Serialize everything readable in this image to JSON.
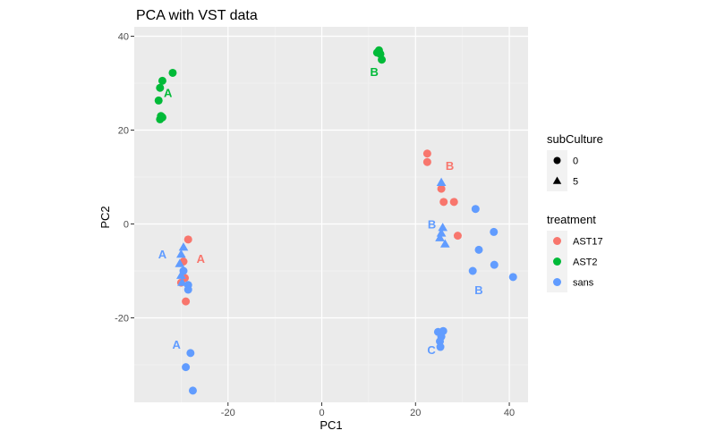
{
  "chart_data": {
    "type": "scatter",
    "title": "PCA with VST data",
    "xlabel": "PC1",
    "ylabel": "PC2",
    "xlim": [
      -40,
      44
    ],
    "ylim": [
      -38,
      42
    ],
    "x_ticks": [
      -20,
      0,
      20,
      40
    ],
    "y_ticks": [
      -20,
      0,
      20,
      40
    ],
    "grid": true,
    "legend_position": "right",
    "legends": [
      {
        "title": "subCulture",
        "kind": "shape",
        "items": [
          {
            "label": "0",
            "shape": "circle"
          },
          {
            "label": "5",
            "shape": "triangle"
          }
        ]
      },
      {
        "title": "treatment",
        "kind": "color",
        "items": [
          {
            "label": "AST17",
            "color": "#F8766D"
          },
          {
            "label": "AST2",
            "color": "#00BA38"
          },
          {
            "label": "sans",
            "color": "#619CFF"
          }
        ]
      }
    ],
    "series": [
      {
        "name": "AST2",
        "color": "#00BA38",
        "points": [
          {
            "x": -34.5,
            "y": 22.3,
            "shape": "circle"
          },
          {
            "x": -34.3,
            "y": 23.0,
            "shape": "circle"
          },
          {
            "x": -34.0,
            "y": 22.7,
            "shape": "circle"
          },
          {
            "x": -34.8,
            "y": 26.3,
            "shape": "circle"
          },
          {
            "x": -34.5,
            "y": 29.0,
            "shape": "circle"
          },
          {
            "x": -34.0,
            "y": 30.5,
            "shape": "circle"
          },
          {
            "x": -31.8,
            "y": 32.2,
            "shape": "circle"
          },
          {
            "x": 11.8,
            "y": 36.5,
            "shape": "circle"
          },
          {
            "x": 12.2,
            "y": 37.0,
            "shape": "circle"
          },
          {
            "x": 12.5,
            "y": 36.2,
            "shape": "circle"
          },
          {
            "x": 12.8,
            "y": 35.0,
            "shape": "circle"
          }
        ]
      },
      {
        "name": "AST17",
        "color": "#F8766D",
        "points": [
          {
            "x": -28.5,
            "y": -3.3,
            "shape": "circle"
          },
          {
            "x": -29.5,
            "y": -8.0,
            "shape": "circle"
          },
          {
            "x": -29.2,
            "y": -11.5,
            "shape": "circle"
          },
          {
            "x": -30.0,
            "y": -12.5,
            "shape": "circle"
          },
          {
            "x": -29.0,
            "y": -16.5,
            "shape": "circle"
          },
          {
            "x": 22.5,
            "y": 15.0,
            "shape": "circle"
          },
          {
            "x": 22.5,
            "y": 13.2,
            "shape": "circle"
          },
          {
            "x": 25.5,
            "y": 7.5,
            "shape": "circle"
          },
          {
            "x": 26.0,
            "y": 4.7,
            "shape": "circle"
          },
          {
            "x": 28.2,
            "y": 4.7,
            "shape": "circle"
          },
          {
            "x": 29.0,
            "y": -2.5,
            "shape": "circle"
          }
        ]
      },
      {
        "name": "sans",
        "color": "#619CFF",
        "points": [
          {
            "x": -29.5,
            "y": -5.0,
            "shape": "triangle"
          },
          {
            "x": -30.0,
            "y": -6.5,
            "shape": "triangle"
          },
          {
            "x": -30.3,
            "y": -8.5,
            "shape": "triangle"
          },
          {
            "x": -30.0,
            "y": -11.0,
            "shape": "triangle"
          },
          {
            "x": -29.8,
            "y": -12.5,
            "shape": "triangle"
          },
          {
            "x": -29.5,
            "y": -10.0,
            "shape": "circle"
          },
          {
            "x": -28.5,
            "y": -13.0,
            "shape": "circle"
          },
          {
            "x": -28.5,
            "y": -14.0,
            "shape": "circle"
          },
          {
            "x": -28.0,
            "y": -27.5,
            "shape": "circle"
          },
          {
            "x": -29.0,
            "y": -30.5,
            "shape": "circle"
          },
          {
            "x": -27.5,
            "y": -35.5,
            "shape": "circle"
          },
          {
            "x": 25.5,
            "y": 8.8,
            "shape": "triangle"
          },
          {
            "x": 25.8,
            "y": -0.8,
            "shape": "triangle"
          },
          {
            "x": 25.5,
            "y": -2.0,
            "shape": "triangle"
          },
          {
            "x": 25.2,
            "y": -3.0,
            "shape": "triangle"
          },
          {
            "x": 26.3,
            "y": -4.3,
            "shape": "triangle"
          },
          {
            "x": 32.8,
            "y": 3.2,
            "shape": "circle"
          },
          {
            "x": 36.7,
            "y": -1.7,
            "shape": "circle"
          },
          {
            "x": 33.5,
            "y": -5.5,
            "shape": "circle"
          },
          {
            "x": 36.8,
            "y": -8.7,
            "shape": "circle"
          },
          {
            "x": 32.2,
            "y": -10.0,
            "shape": "circle"
          },
          {
            "x": 40.8,
            "y": -11.3,
            "shape": "circle"
          },
          {
            "x": 24.8,
            "y": -23.0,
            "shape": "circle"
          },
          {
            "x": 25.9,
            "y": -22.8,
            "shape": "circle"
          },
          {
            "x": 25.5,
            "y": -24.0,
            "shape": "circle"
          },
          {
            "x": 25.2,
            "y": -25.0,
            "shape": "circle"
          },
          {
            "x": 25.3,
            "y": -26.2,
            "shape": "circle"
          }
        ]
      }
    ],
    "annotations": [
      {
        "text": "A",
        "x": -32.8,
        "y": 28.0,
        "color": "#00BA38"
      },
      {
        "text": "B",
        "x": 11.2,
        "y": 32.5,
        "color": "#00BA38"
      },
      {
        "text": "B",
        "x": 27.3,
        "y": 12.5,
        "color": "#F8766D"
      },
      {
        "text": "A",
        "x": -25.8,
        "y": -7.3,
        "color": "#F8766D"
      },
      {
        "text": "A",
        "x": -34.0,
        "y": -6.4,
        "color": "#619CFF"
      },
      {
        "text": "B",
        "x": 23.5,
        "y": 0.0,
        "color": "#619CFF"
      },
      {
        "text": "B",
        "x": 33.5,
        "y": -14.0,
        "color": "#619CFF"
      },
      {
        "text": "A",
        "x": -31.0,
        "y": -25.6,
        "color": "#619CFF"
      },
      {
        "text": "C",
        "x": 23.4,
        "y": -26.8,
        "color": "#619CFF"
      }
    ]
  }
}
